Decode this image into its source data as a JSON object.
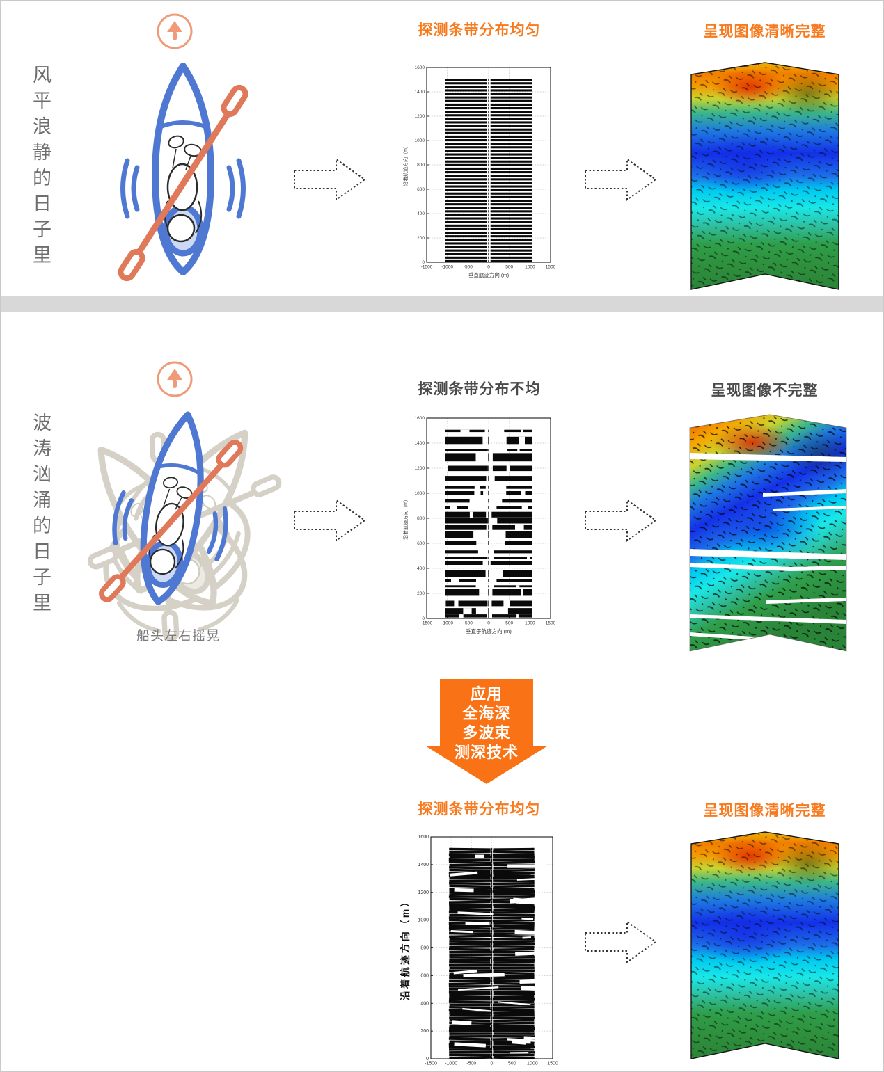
{
  "colors": {
    "accent_orange": "#F87A1E",
    "apply_arrow_orange": "#F97316",
    "coral_icon": "#F09A77",
    "kayak_blue": "#4F78D2",
    "paddle_red": "#E0785A",
    "ghost_gray": "#D5D1C7",
    "divider_gray": "#D8D8D8",
    "side_text_gray": "#6E6E6E",
    "dark_title": "#4A4A4A"
  },
  "sections": {
    "calm": {
      "side_label": "风平浪静的日子里",
      "chart_title": "探测条带分布均匀",
      "image_title": "呈现图像清晰完整"
    },
    "rough": {
      "side_label": "波涛汹涌的日子里",
      "boat_caption": "船头左右摇晃",
      "chart_title": "探测条带分布不均",
      "image_title": "呈现图像不完整"
    },
    "tech": {
      "chart_title": "探测条带分布均匀",
      "image_title": "呈现图像清晰完整"
    }
  },
  "apply_arrow": {
    "lines": [
      "应用",
      "全海深",
      "多波束",
      "测深技术"
    ]
  },
  "chart_data": [
    {
      "type": "area",
      "title": "探测条带分布均匀",
      "xlabel": "垂直航迹方向 (m)",
      "ylabel": "沿着航迹方向（m）",
      "xlim": [
        -1500,
        1500
      ],
      "ylim": [
        0,
        1600
      ],
      "xticks": [
        -1500,
        -1000,
        -500,
        0,
        500,
        1000,
        1500
      ],
      "yticks": [
        0,
        200,
        400,
        600,
        800,
        1000,
        1200,
        1400,
        1600
      ],
      "swath_x": [
        -1050,
        1050
      ],
      "swath_y": [
        0,
        1520
      ],
      "center_gap": 45,
      "center_core": 12,
      "pattern": "uniform",
      "stripe_count": 52,
      "grid": true,
      "legend": "none"
    },
    {
      "type": "area",
      "title": "探测条带分布不均",
      "xlabel": "垂直于航迹方向 (m)",
      "ylabel": "沿着航迹方向（m）",
      "xlim": [
        -1500,
        1500
      ],
      "ylim": [
        0,
        1600
      ],
      "xticks": [
        -1500,
        -1000,
        -500,
        0,
        500,
        1000,
        1500
      ],
      "yticks": [
        0,
        200,
        400,
        600,
        800,
        1000,
        1200,
        1400,
        1600
      ],
      "swath_x": [
        -1050,
        1050
      ],
      "swath_y": [
        0,
        1520
      ],
      "center_gap": 45,
      "center_core": 12,
      "pattern": "uneven",
      "stripe_count": 30,
      "grid": true,
      "legend": "none"
    },
    {
      "type": "area",
      "title": "探测条带分布均匀",
      "xlabel": "",
      "ylabel": "沿着航迹方向（m）",
      "xlim": [
        -1500,
        1500
      ],
      "ylim": [
        0,
        1600
      ],
      "xticks": [
        -1500,
        -1000,
        -500,
        0,
        500,
        1000,
        1500
      ],
      "yticks": [
        0,
        200,
        400,
        600,
        800,
        1000,
        1200,
        1400,
        1600
      ],
      "swath_x": [
        -1050,
        1050
      ],
      "swath_y": [
        0,
        1520
      ],
      "center_gap": 45,
      "center_core": 12,
      "pattern": "dense",
      "stripe_count": 80,
      "grid": true,
      "legend": "none"
    }
  ]
}
